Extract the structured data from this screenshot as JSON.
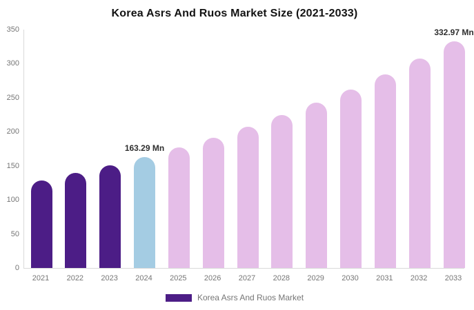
{
  "title": "Korea Asrs And Ruos Market Size (2021-2033)",
  "legend": {
    "label": "Korea Asrs And Ruos Market",
    "swatch_color": "#4C1D86"
  },
  "colors": {
    "historical_bar": "#4C1D86",
    "base_year_bar": "#A4CCE3",
    "forecast_bar": "#E5BEE8",
    "axis_line": "#d9d9d9",
    "tick_text": "#757575",
    "annotation_text": "#2e2e2e"
  },
  "chart_data": {
    "type": "bar",
    "title": "Korea Asrs And Ruos Market Size (2021-2033)",
    "xlabel": "",
    "ylabel": "",
    "categories": [
      "2021",
      "2022",
      "2023",
      "2024",
      "2025",
      "2026",
      "2027",
      "2028",
      "2029",
      "2030",
      "2031",
      "2032",
      "2033"
    ],
    "values": [
      128.8,
      139.4,
      150.9,
      163.29,
      176.7,
      191.3,
      207.0,
      224.1,
      242.6,
      262.5,
      284.2,
      307.6,
      332.97
    ],
    "unit": "Mn",
    "bar_colors": [
      "#4C1D86",
      "#4C1D86",
      "#4C1D86",
      "#A4CCE3",
      "#E5BEE8",
      "#E5BEE8",
      "#E5BEE8",
      "#E5BEE8",
      "#E5BEE8",
      "#E5BEE8",
      "#E5BEE8",
      "#E5BEE8",
      "#E5BEE8"
    ],
    "annotations": [
      {
        "category": "2024",
        "text": "163.29 Mn"
      },
      {
        "category": "2033",
        "text": "332.97 Mn"
      }
    ],
    "ylim": [
      0,
      350
    ],
    "yticks": [
      0,
      50,
      100,
      150,
      200,
      250,
      300,
      350
    ],
    "grid": false,
    "legend_position": "bottom"
  }
}
